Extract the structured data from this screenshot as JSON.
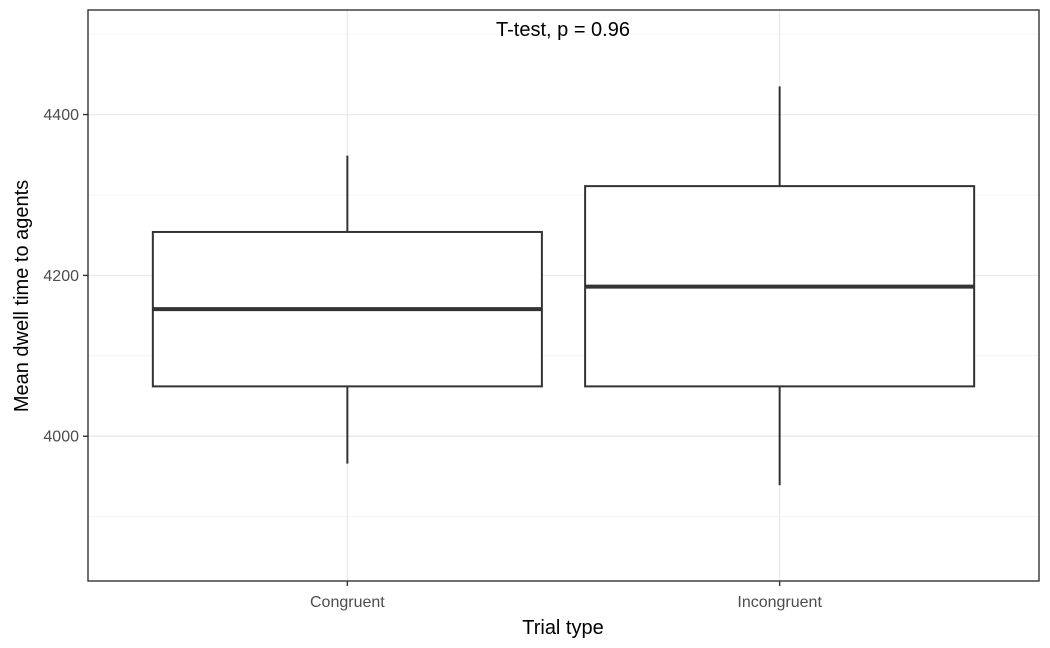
{
  "chart_data": {
    "type": "boxplot",
    "title": "",
    "annotation": "T-test, p = 0.96",
    "xlabel": "Trial type",
    "ylabel": "Mean dwell time to agents",
    "categories": [
      "Congruent",
      "Incongruent"
    ],
    "ylim": [
      3820,
      4530
    ],
    "yticks": [
      4000,
      4200,
      4400
    ],
    "ytick_labels": [
      "4000",
      "4200",
      "4400"
    ],
    "boxes": [
      {
        "category": "Congruent",
        "whisker_low": 3966,
        "q1": 4062,
        "median": 4158,
        "q3": 4254,
        "whisker_high": 4349
      },
      {
        "category": "Incongruent",
        "whisker_low": 3939,
        "q1": 4062,
        "median": 4186,
        "q3": 4311,
        "whisker_high": 4435
      }
    ],
    "grid": true,
    "legend": "none",
    "colors": {
      "box_line": "#333333",
      "box_fill": "#ffffff",
      "grid": "#ebebeb",
      "panel_border": "#333333"
    }
  }
}
